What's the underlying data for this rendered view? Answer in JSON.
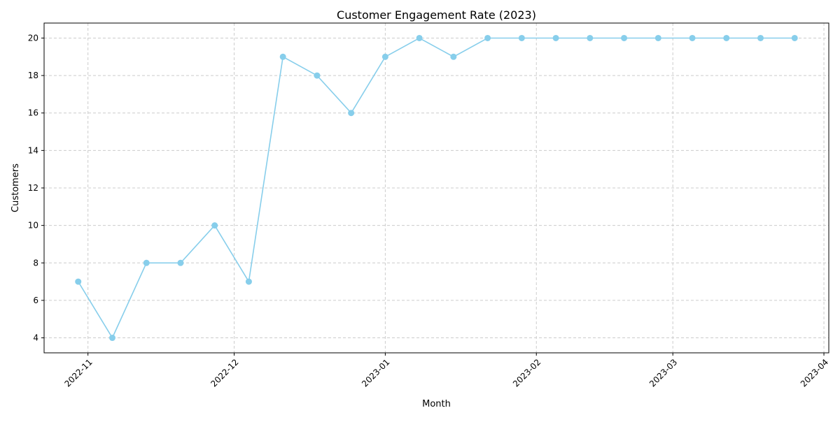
{
  "chart_data": {
    "type": "line",
    "title": "Customer Engagement Rate (2023)",
    "xlabel": "Month",
    "ylabel": "Customers",
    "x": [
      "2022-10-30",
      "2022-11-06",
      "2022-11-13",
      "2022-11-20",
      "2022-11-27",
      "2022-12-04",
      "2022-12-11",
      "2022-12-18",
      "2022-12-25",
      "2023-01-01",
      "2023-01-08",
      "2023-01-15",
      "2023-01-22",
      "2023-01-29",
      "2023-02-05",
      "2023-02-12",
      "2023-02-19",
      "2023-02-26",
      "2023-03-05",
      "2023-03-12",
      "2023-03-19",
      "2023-03-26"
    ],
    "series": [
      {
        "values": [
          7,
          4,
          8,
          8,
          10,
          7,
          19,
          18,
          16,
          19,
          20,
          19,
          20,
          20,
          20,
          20,
          20,
          20,
          20,
          20,
          20,
          20
        ]
      }
    ],
    "xlim": [
      "2022-10-23",
      "2023-04-02"
    ],
    "ylim": [
      3.2,
      20.8
    ],
    "x_ticks": [
      "2022-11",
      "2022-12",
      "2023-01",
      "2023-02",
      "2023-03",
      "2023-04"
    ],
    "y_ticks": [
      4,
      6,
      8,
      10,
      12,
      14,
      16,
      18,
      20
    ],
    "grid": true,
    "colors": {
      "line": "#87ceeb",
      "grid": "#cccccc",
      "axes": "#000000"
    }
  }
}
